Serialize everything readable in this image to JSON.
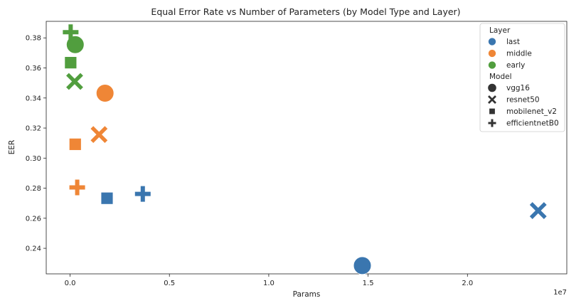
{
  "chart_data": {
    "type": "scatter",
    "title": "Equal Error Rate vs Number of Parameters (by Model Type and Layer)",
    "xlabel": "Params",
    "ylabel": "EER",
    "x_offset_label": "1e7",
    "xlim": [
      -0.12,
      2.5
    ],
    "ylim": [
      0.223,
      0.391
    ],
    "x_ticks": [
      0.0,
      0.5,
      1.0,
      1.5,
      2.0
    ],
    "x_tick_labels": [
      "0.0",
      "0.5",
      "1.0",
      "1.5",
      "2.0"
    ],
    "y_ticks": [
      0.24,
      0.26,
      0.28,
      0.3,
      0.32,
      0.34,
      0.36,
      0.38
    ],
    "y_tick_labels": [
      "0.24",
      "0.26",
      "0.28",
      "0.30",
      "0.32",
      "0.34",
      "0.36",
      "0.38"
    ],
    "grid": false,
    "legend_position": "top-right",
    "hue_title": "Layer",
    "style_title": "Model",
    "layers": [
      {
        "name": "last",
        "color": "#3a76af"
      },
      {
        "name": "middle",
        "color": "#ef8636"
      },
      {
        "name": "early",
        "color": "#519e3e"
      }
    ],
    "models": [
      {
        "name": "vgg16",
        "marker": "circle"
      },
      {
        "name": "resnet50",
        "marker": "x"
      },
      {
        "name": "mobilenet_v2",
        "marker": "square"
      },
      {
        "name": "efficientnetB0",
        "marker": "plus"
      }
    ],
    "points": [
      {
        "model": "vgg16",
        "layer": "last",
        "x": 1.471,
        "y": 0.2285
      },
      {
        "model": "vgg16",
        "layer": "middle",
        "x": 0.176,
        "y": 0.3432
      },
      {
        "model": "vgg16",
        "layer": "early",
        "x": 0.026,
        "y": 0.3755
      },
      {
        "model": "resnet50",
        "layer": "last",
        "x": 2.356,
        "y": 0.2651
      },
      {
        "model": "resnet50",
        "layer": "middle",
        "x": 0.146,
        "y": 0.3157
      },
      {
        "model": "resnet50",
        "layer": "early",
        "x": 0.023,
        "y": 0.351
      },
      {
        "model": "mobilenet_v2",
        "layer": "last",
        "x": 0.186,
        "y": 0.2733
      },
      {
        "model": "mobilenet_v2",
        "layer": "middle",
        "x": 0.026,
        "y": 0.3092
      },
      {
        "model": "mobilenet_v2",
        "layer": "early",
        "x": 0.003,
        "y": 0.3635
      },
      {
        "model": "efficientnetB0",
        "layer": "last",
        "x": 0.366,
        "y": 0.2762
      },
      {
        "model": "efficientnetB0",
        "layer": "middle",
        "x": 0.036,
        "y": 0.2805
      },
      {
        "model": "efficientnetB0",
        "layer": "early",
        "x": 0.003,
        "y": 0.3838
      }
    ]
  }
}
